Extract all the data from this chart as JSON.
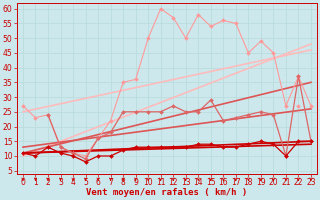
{
  "background_color": "#cce8ed",
  "grid_color": "#aacccc",
  "xlabel": "Vent moyen/en rafales ( km/h )",
  "xlim": [
    -0.5,
    23.5
  ],
  "ylim": [
    4,
    62
  ],
  "yticks": [
    5,
    10,
    15,
    20,
    25,
    30,
    35,
    40,
    45,
    50,
    55,
    60
  ],
  "xticks": [
    0,
    1,
    2,
    3,
    4,
    5,
    6,
    7,
    8,
    9,
    10,
    11,
    12,
    13,
    14,
    15,
    16,
    17,
    18,
    19,
    20,
    21,
    22,
    23
  ],
  "series": [
    {
      "x": [
        0,
        1,
        2,
        3,
        4,
        5,
        6,
        7,
        8,
        9,
        10,
        11,
        12,
        13,
        14,
        15,
        16,
        17,
        18,
        19,
        20,
        21,
        22,
        23
      ],
      "y": [
        27,
        23,
        24,
        13,
        11,
        10,
        16,
        22,
        35,
        36,
        50,
        60,
        57,
        50,
        58,
        54,
        56,
        55,
        45,
        49,
        45,
        27,
        37,
        27
      ],
      "color": "#ff9999",
      "linewidth": 0.8,
      "marker": "D",
      "markersize": 2,
      "zorder": 3
    },
    {
      "x": [
        0,
        1,
        2,
        3,
        4,
        5,
        6,
        7,
        8,
        9,
        10,
        11,
        12,
        13,
        14,
        15,
        16,
        17,
        18,
        19,
        20,
        21,
        22,
        23
      ],
      "y": [
        null,
        null,
        null,
        null,
        null,
        null,
        null,
        null,
        null,
        null,
        null,
        null,
        null,
        null,
        null,
        null,
        null,
        null,
        null,
        null,
        null,
        null,
        27,
        null
      ],
      "color": "#ff9999",
      "linewidth": 0.8,
      "marker": "D",
      "markersize": 2,
      "zorder": 3
    },
    {
      "x": [
        2,
        3,
        4,
        5,
        6,
        7,
        8,
        9,
        10,
        11,
        12,
        13,
        14,
        15,
        16,
        17,
        18,
        19,
        20,
        21,
        22,
        23
      ],
      "y": [
        24,
        13,
        11,
        9,
        16,
        18,
        25,
        25,
        25,
        25,
        27,
        25,
        25,
        29,
        22,
        23,
        24,
        25,
        24,
        10,
        37,
        15
      ],
      "color": "#dd6666",
      "linewidth": 0.9,
      "marker": "D",
      "markersize": 2,
      "zorder": 4
    },
    {
      "x": [
        0,
        1,
        2,
        3,
        4,
        5,
        6,
        7,
        8,
        9,
        10,
        11,
        12,
        13,
        14,
        15,
        16,
        17,
        18,
        19,
        20,
        21,
        22,
        23
      ],
      "y": [
        11,
        10,
        13,
        11,
        10,
        8,
        10,
        10,
        12,
        13,
        13,
        13,
        13,
        13,
        14,
        14,
        13,
        13,
        14,
        15,
        14,
        10,
        15,
        15
      ],
      "color": "#cc0000",
      "linewidth": 0.9,
      "marker": "D",
      "markersize": 2,
      "zorder": 5
    },
    {
      "x": [
        0,
        23
      ],
      "y": [
        10,
        48
      ],
      "color": "#ffbbbb",
      "linewidth": 1.2,
      "marker": null,
      "markersize": 0,
      "zorder": 2
    },
    {
      "x": [
        0,
        23
      ],
      "y": [
        25,
        46
      ],
      "color": "#ffbbbb",
      "linewidth": 1.2,
      "marker": null,
      "markersize": 0,
      "zorder": 2
    },
    {
      "x": [
        0,
        23
      ],
      "y": [
        11,
        35
      ],
      "color": "#dd5555",
      "linewidth": 1.2,
      "marker": null,
      "markersize": 0,
      "zorder": 2
    },
    {
      "x": [
        0,
        23
      ],
      "y": [
        13,
        26
      ],
      "color": "#dd5555",
      "linewidth": 1.2,
      "marker": null,
      "markersize": 0,
      "zorder": 2
    },
    {
      "x": [
        0,
        23
      ],
      "y": [
        11,
        14
      ],
      "color": "#cc0000",
      "linewidth": 1.2,
      "marker": null,
      "markersize": 0,
      "zorder": 2
    },
    {
      "x": [
        0,
        23
      ],
      "y": [
        11,
        15
      ],
      "color": "#cc0000",
      "linewidth": 1.2,
      "marker": null,
      "markersize": 0,
      "zorder": 2
    }
  ],
  "tick_fontsize": 5.5,
  "axis_label_fontsize": 6.5
}
